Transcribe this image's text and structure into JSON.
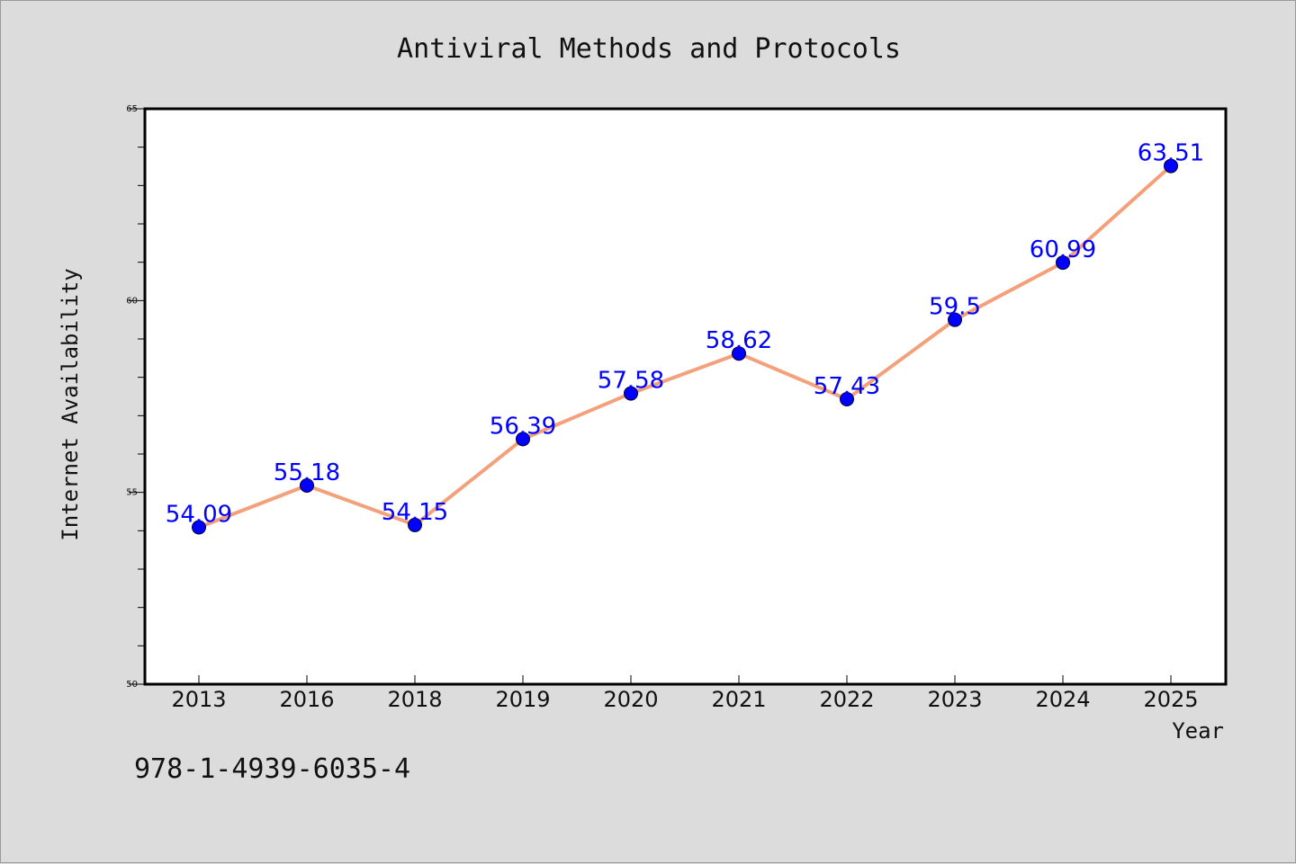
{
  "chart_data": {
    "type": "line",
    "title": "Antiviral Methods and Protocols",
    "xlabel": "Year",
    "ylabel": "Internet Availability",
    "categories": [
      "2013",
      "2016",
      "2018",
      "2019",
      "2020",
      "2021",
      "2022",
      "2023",
      "2024",
      "2025"
    ],
    "series": [
      {
        "values": [
          54.09,
          55.18,
          54.15,
          56.39,
          57.58,
          58.62,
          57.43,
          59.5,
          60.99,
          63.51
        ],
        "data_labels": [
          "54.09",
          "55.18",
          "54.15",
          "56.39",
          "57.58",
          "58.62",
          "57.43",
          "59.5",
          "60.99",
          "63.51"
        ],
        "line_color": "#f4a07a",
        "marker_color": "#0000ff"
      }
    ],
    "ylim": [
      50,
      65
    ],
    "yticks": [
      "50",
      "55",
      "60",
      "65"
    ],
    "y_minor_step": 1,
    "grid": false,
    "legend": "none"
  },
  "footer": {
    "isbn": "978-1-4939-6035-4"
  },
  "colors": {
    "background": "#dcdcdc",
    "plot_background": "#ffffff",
    "line": "#f4a07a",
    "marker": "#0000ff",
    "data_label": "#0000ff"
  }
}
